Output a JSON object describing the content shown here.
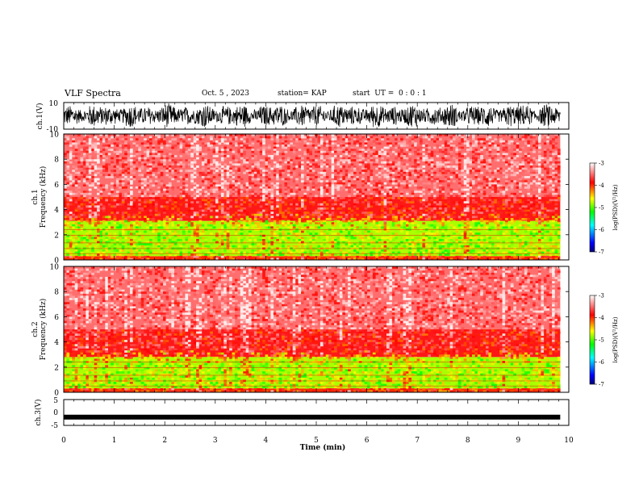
{
  "header": {
    "title": "VLF Spectra",
    "date": "Oct. 5 , 2023",
    "station": "station= KAP",
    "start": "start  UT =  0 : 0 : 1"
  },
  "colors": {
    "frame": "#000000",
    "waveform": "#000000",
    "spectrum_high": "#e80000",
    "spectrum_mid": "#ffff00",
    "spectrum_low": "#00ff00",
    "colorbar_stops": [
      "#00007a",
      "#0000ff",
      "#00ffff",
      "#00ff00",
      "#ffff00",
      "#ff0000",
      "#ffffff"
    ]
  },
  "chart_data": [
    {
      "type": "line",
      "id": "ch1-waveform",
      "ylabel": "ch.1(V)",
      "ylim": [
        -10,
        10
      ],
      "yticks": [
        "10",
        "-10"
      ],
      "xlim": [
        0,
        10
      ],
      "x_end": 9.83,
      "description_level": "noisy waveform spanning approximately -8 to 8 V"
    },
    {
      "type": "heatmap",
      "id": "ch1-spectrogram",
      "ylabel_line1": "ch.1",
      "ylabel_line2": "Frequency  (kHz)",
      "ylim": [
        0,
        10
      ],
      "yticks": [
        "0",
        "2",
        "4",
        "6",
        "8",
        "10"
      ],
      "xlim": [
        0,
        10
      ],
      "x_end": 9.83,
      "bands": [
        {
          "from": 0,
          "to": 0.3,
          "level": -4.0
        },
        {
          "from": 0.3,
          "to": 3.1,
          "level": -4.8
        },
        {
          "from": 3.1,
          "to": 5.0,
          "level": -3.8
        },
        {
          "from": 5.0,
          "to": 10,
          "level": -3.5
        }
      ],
      "colorbar": {
        "label": "log(PSD)(V²/Hz)",
        "ticks": [
          "-3",
          "-4",
          "-5",
          "-6",
          "-7"
        ],
        "range": [
          -7,
          -3
        ]
      }
    },
    {
      "type": "heatmap",
      "id": "ch2-spectrogram",
      "ylabel_line1": "ch.2",
      "ylabel_line2": "Frequency  (kHz)",
      "ylim": [
        0,
        10
      ],
      "yticks": [
        "0",
        "2",
        "4",
        "6",
        "8",
        "10"
      ],
      "xlim": [
        0,
        10
      ],
      "x_end": 9.83,
      "bands": [
        {
          "from": 0,
          "to": 0.3,
          "level": -4.0
        },
        {
          "from": 0.3,
          "to": 2.8,
          "level": -4.8
        },
        {
          "from": 2.8,
          "to": 5.0,
          "level": -3.8
        },
        {
          "from": 5.0,
          "to": 10,
          "level": -3.5
        }
      ],
      "colorbar": {
        "label": "log(PSD)(V²/Hz)",
        "ticks": [
          "-3",
          "-4",
          "-5",
          "-6",
          "-7"
        ],
        "range": [
          -7,
          -3
        ]
      }
    },
    {
      "type": "line",
      "id": "ch3-waveform",
      "ylabel": "ch.3(V)",
      "ylim": [
        -5,
        5
      ],
      "yticks": [
        "5",
        "0",
        "-5"
      ],
      "xlim": [
        0,
        10
      ],
      "x_end": 9.83,
      "level": -1.8
    }
  ],
  "xaxis": {
    "label": "Time  (min)",
    "ticks": [
      "0",
      "1",
      "2",
      "3",
      "4",
      "5",
      "6",
      "7",
      "8",
      "9",
      "10"
    ],
    "range": [
      0,
      10
    ]
  }
}
